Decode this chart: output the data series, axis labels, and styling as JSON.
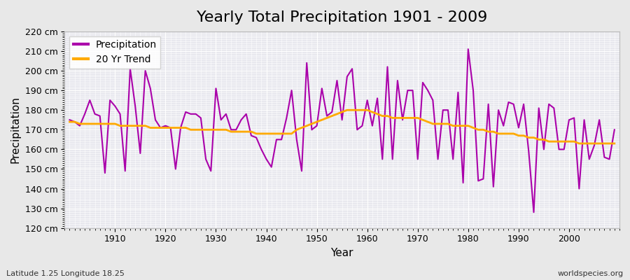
{
  "title": "Yearly Total Precipitation 1901 - 2009",
  "xlabel": "Year",
  "ylabel": "Precipitation",
  "subtitle": "Latitude 1.25 Longitude 18.25",
  "watermark": "worldspecies.org",
  "ylim": [
    120,
    220
  ],
  "ytick_step": 10,
  "years": [
    1901,
    1902,
    1903,
    1904,
    1905,
    1906,
    1907,
    1908,
    1909,
    1910,
    1911,
    1912,
    1913,
    1914,
    1915,
    1916,
    1917,
    1918,
    1919,
    1920,
    1921,
    1922,
    1923,
    1924,
    1925,
    1926,
    1927,
    1928,
    1929,
    1930,
    1931,
    1932,
    1933,
    1934,
    1935,
    1936,
    1937,
    1938,
    1939,
    1940,
    1941,
    1942,
    1943,
    1944,
    1945,
    1946,
    1947,
    1948,
    1949,
    1950,
    1951,
    1952,
    1953,
    1954,
    1955,
    1956,
    1957,
    1958,
    1959,
    1960,
    1961,
    1962,
    1963,
    1964,
    1965,
    1966,
    1967,
    1968,
    1969,
    1970,
    1971,
    1972,
    1973,
    1974,
    1975,
    1976,
    1977,
    1978,
    1979,
    1980,
    1981,
    1982,
    1983,
    1984,
    1985,
    1986,
    1987,
    1988,
    1989,
    1990,
    1991,
    1992,
    1993,
    1994,
    1995,
    1996,
    1997,
    1998,
    1999,
    2000,
    2001,
    2002,
    2003,
    2004,
    2005,
    2006,
    2007,
    2008,
    2009
  ],
  "precip": [
    175,
    174,
    172,
    178,
    185,
    178,
    177,
    148,
    185,
    182,
    178,
    149,
    201,
    182,
    158,
    200,
    191,
    175,
    171,
    172,
    171,
    150,
    171,
    179,
    178,
    178,
    176,
    155,
    149,
    191,
    175,
    178,
    170,
    170,
    175,
    178,
    167,
    166,
    160,
    155,
    151,
    165,
    165,
    176,
    190,
    165,
    149,
    204,
    170,
    172,
    191,
    177,
    179,
    195,
    175,
    197,
    201,
    170,
    172,
    185,
    172,
    186,
    155,
    202,
    155,
    195,
    175,
    190,
    190,
    155,
    194,
    190,
    185,
    155,
    180,
    180,
    155,
    189,
    143,
    211,
    190,
    144,
    145,
    183,
    141,
    180,
    172,
    184,
    183,
    171,
    183,
    159,
    128,
    181,
    160,
    183,
    181,
    160,
    160,
    175,
    176,
    140,
    175,
    155,
    162,
    175,
    156,
    155,
    170
  ],
  "trend": [
    174,
    174,
    173,
    173,
    173,
    173,
    173,
    173,
    173,
    173,
    172,
    172,
    172,
    172,
    172,
    172,
    171,
    171,
    171,
    171,
    171,
    171,
    171,
    171,
    170,
    170,
    170,
    170,
    170,
    170,
    170,
    170,
    169,
    169,
    169,
    169,
    169,
    168,
    168,
    168,
    168,
    168,
    168,
    168,
    168,
    170,
    171,
    172,
    173,
    174,
    175,
    176,
    177,
    178,
    179,
    180,
    180,
    180,
    180,
    180,
    179,
    178,
    177,
    177,
    176,
    176,
    176,
    176,
    176,
    176,
    175,
    174,
    173,
    173,
    173,
    173,
    172,
    172,
    172,
    172,
    171,
    170,
    170,
    169,
    169,
    168,
    168,
    168,
    168,
    167,
    167,
    166,
    166,
    165,
    165,
    164,
    164,
    164,
    164,
    164,
    164,
    163,
    163,
    163,
    163,
    163,
    163,
    163,
    163
  ],
  "precip_color": "#aa00aa",
  "trend_color": "#ffaa00",
  "bg_color": "#e8e8e8",
  "plot_bg_color": "#e8e8ee",
  "grid_color": "#ffffff",
  "precip_linewidth": 1.5,
  "trend_linewidth": 2.0,
  "title_fontsize": 16,
  "label_fontsize": 11,
  "tick_fontsize": 9,
  "legend_fontsize": 10
}
